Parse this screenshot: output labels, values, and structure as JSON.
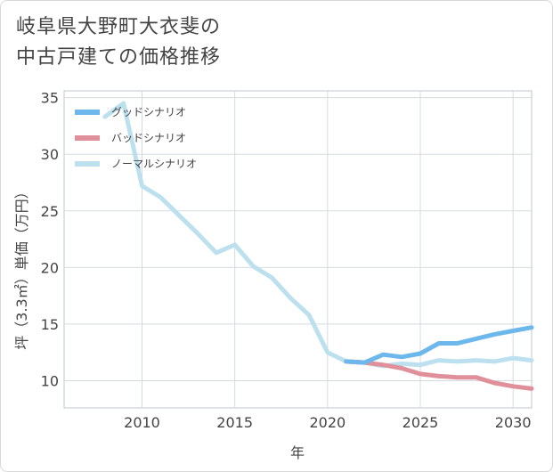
{
  "title_lines": [
    "岐阜県大野町大衣斐の",
    "中古戸建ての価格推移"
  ],
  "chart_data": {
    "type": "line",
    "title": "岐阜県大野町大衣斐の中古戸建ての価格推移",
    "xlabel": "年",
    "ylabel": "坪（3.3㎡）単価（万円）",
    "xlim": [
      2005.8,
      2031
    ],
    "ylim": [
      7.6,
      35.6
    ],
    "xticks": [
      2010,
      2015,
      2020,
      2025,
      2030
    ],
    "yticks": [
      10,
      15,
      20,
      25,
      30,
      35
    ],
    "grid": true,
    "legend_position": "top-left",
    "series": [
      {
        "name": "グッドシナリオ",
        "color": "#6cb8ec",
        "x": [
          2021,
          2022,
          2023,
          2024,
          2025,
          2026,
          2027,
          2028,
          2029,
          2030,
          2031
        ],
        "y": [
          11.7,
          11.6,
          12.3,
          12.1,
          12.4,
          13.3,
          13.3,
          13.7,
          14.1,
          14.4,
          14.7
        ]
      },
      {
        "name": "バッドシナリオ",
        "color": "#e0909a",
        "x": [
          2021,
          2022,
          2023,
          2024,
          2025,
          2026,
          2027,
          2028,
          2029,
          2030,
          2031
        ],
        "y": [
          11.7,
          11.6,
          11.4,
          11.1,
          10.6,
          10.4,
          10.3,
          10.3,
          9.8,
          9.5,
          9.3
        ]
      },
      {
        "name": "ノーマルシナリオ",
        "color": "#bde0ef",
        "x": [
          2008,
          2009,
          2010,
          2011,
          2012,
          2013,
          2014,
          2015,
          2016,
          2017,
          2018,
          2019,
          2020,
          2021,
          2022,
          2023,
          2024,
          2025,
          2026,
          2027,
          2028,
          2029,
          2030,
          2031
        ],
        "y": [
          33.3,
          34.5,
          27.2,
          26.2,
          24.6,
          23.0,
          21.3,
          22.0,
          20.1,
          19.1,
          17.3,
          15.8,
          12.5,
          11.7,
          11.6,
          11.3,
          11.5,
          11.4,
          11.8,
          11.7,
          11.8,
          11.7,
          12.0,
          11.8
        ]
      }
    ]
  }
}
